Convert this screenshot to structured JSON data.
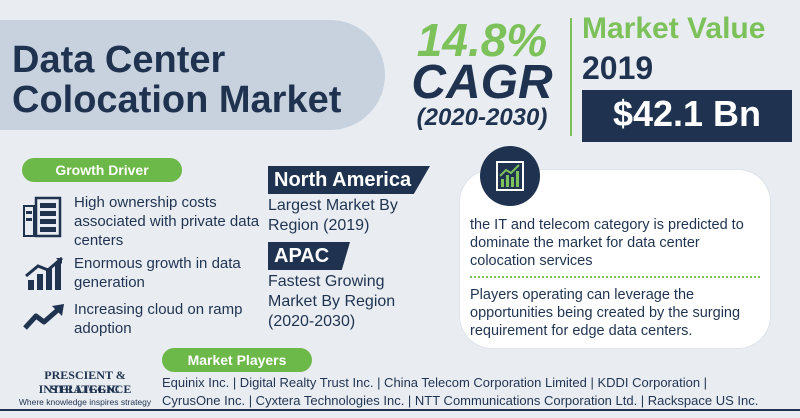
{
  "title": {
    "line1": "Data Center",
    "line2": "Colocation Market"
  },
  "cagr": {
    "percent": "14.8%",
    "label": "CAGR",
    "years": "(2020-2030)"
  },
  "market_value": {
    "label": "Market Value",
    "year": "2019",
    "value": "$42.1 Bn"
  },
  "growth_driver": {
    "heading": "Growth Driver",
    "items": [
      {
        "icon": "server-icon",
        "text": "High ownership costs associated with private data centers"
      },
      {
        "icon": "bar-growth-icon",
        "text": "Enormous growth in data generation"
      },
      {
        "icon": "trend-up-icon",
        "text": "Increasing cloud on ramp adoption"
      }
    ]
  },
  "regions": [
    {
      "name": "North America",
      "desc": "Largest Market By Region (2019)"
    },
    {
      "name": "APAC",
      "desc": "Fastest Growing Market By Region (2020-2030)"
    }
  ],
  "card": {
    "icon": "growth-chart-icon",
    "text1": "the IT and telecom category is predicted to dominate the market for data center colocation services",
    "text2": "Players operating can leverage the opportunities being created by the surging requirement for edge data centers."
  },
  "market_players": {
    "heading": "Market Players",
    "line1": "Equinix Inc. | Digital Realty Trust Inc. | China Telecom Corporation Limited | KDDI Corporation |",
    "line2": "CyrusOne Inc. | Cyxtera Technologies Inc. | NTT Communications Corporation Ltd. | Rackspace US Inc."
  },
  "logo": {
    "line1": "PRESCIENT & STRATEGIC",
    "line2": "INTELLIGENCE",
    "tagline": "Where knowledge inspires strategy"
  },
  "colors": {
    "navy": "#1f3350",
    "green": "#7cc15a",
    "pill_green": "#6cb848",
    "title_bg": "#c8d2de"
  }
}
